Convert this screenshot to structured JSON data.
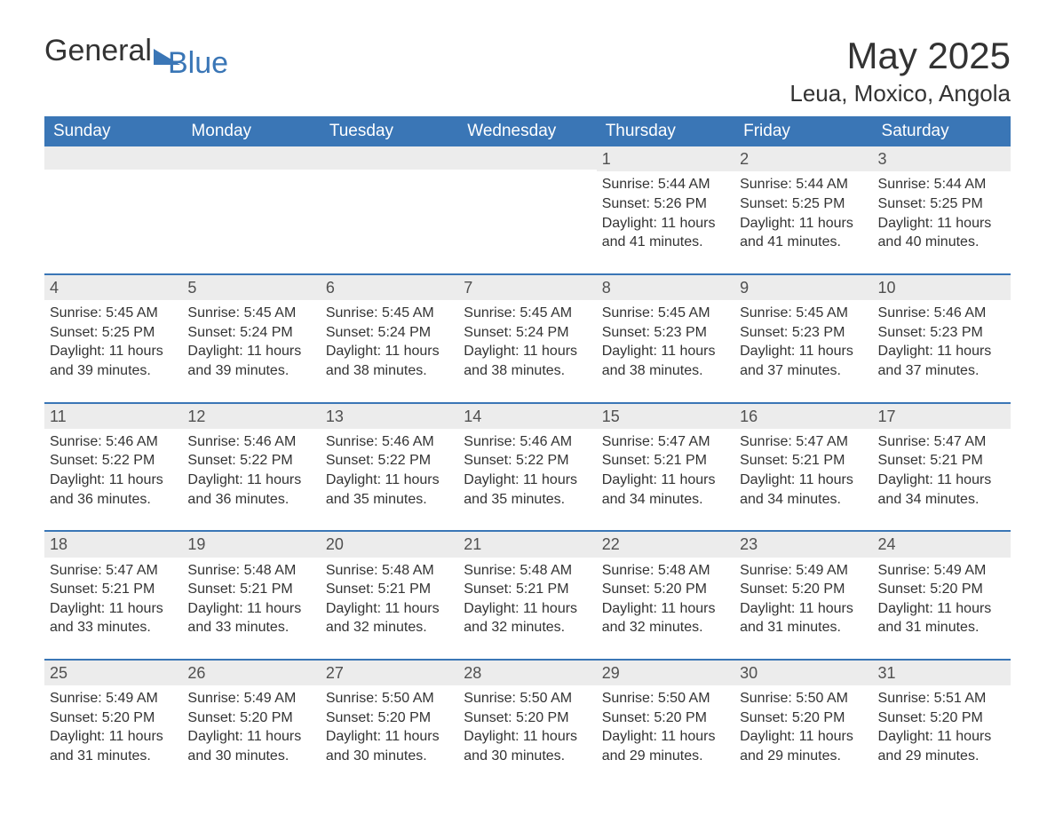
{
  "brand": {
    "word1": "General",
    "word2": "Blue",
    "accent_color": "#3a76b6"
  },
  "title": "May 2025",
  "location": "Leua, Moxico, Angola",
  "columns": [
    "Sunday",
    "Monday",
    "Tuesday",
    "Wednesday",
    "Thursday",
    "Friday",
    "Saturday"
  ],
  "labels": {
    "sunrise": "Sunrise:",
    "sunset": "Sunset:",
    "daylight": "Daylight:"
  },
  "colors": {
    "header_bg": "#3a76b6",
    "header_text": "#ffffff",
    "daynum_bg": "#ececec",
    "row_divider": "#3a76b6",
    "body_text": "#333333",
    "page_bg": "#ffffff"
  },
  "weeks": [
    [
      null,
      null,
      null,
      null,
      {
        "n": "1",
        "sr": "5:44 AM",
        "ss": "5:26 PM",
        "dl": "11 hours and 41 minutes."
      },
      {
        "n": "2",
        "sr": "5:44 AM",
        "ss": "5:25 PM",
        "dl": "11 hours and 41 minutes."
      },
      {
        "n": "3",
        "sr": "5:44 AM",
        "ss": "5:25 PM",
        "dl": "11 hours and 40 minutes."
      }
    ],
    [
      {
        "n": "4",
        "sr": "5:45 AM",
        "ss": "5:25 PM",
        "dl": "11 hours and 39 minutes."
      },
      {
        "n": "5",
        "sr": "5:45 AM",
        "ss": "5:24 PM",
        "dl": "11 hours and 39 minutes."
      },
      {
        "n": "6",
        "sr": "5:45 AM",
        "ss": "5:24 PM",
        "dl": "11 hours and 38 minutes."
      },
      {
        "n": "7",
        "sr": "5:45 AM",
        "ss": "5:24 PM",
        "dl": "11 hours and 38 minutes."
      },
      {
        "n": "8",
        "sr": "5:45 AM",
        "ss": "5:23 PM",
        "dl": "11 hours and 38 minutes."
      },
      {
        "n": "9",
        "sr": "5:45 AM",
        "ss": "5:23 PM",
        "dl": "11 hours and 37 minutes."
      },
      {
        "n": "10",
        "sr": "5:46 AM",
        "ss": "5:23 PM",
        "dl": "11 hours and 37 minutes."
      }
    ],
    [
      {
        "n": "11",
        "sr": "5:46 AM",
        "ss": "5:22 PM",
        "dl": "11 hours and 36 minutes."
      },
      {
        "n": "12",
        "sr": "5:46 AM",
        "ss": "5:22 PM",
        "dl": "11 hours and 36 minutes."
      },
      {
        "n": "13",
        "sr": "5:46 AM",
        "ss": "5:22 PM",
        "dl": "11 hours and 35 minutes."
      },
      {
        "n": "14",
        "sr": "5:46 AM",
        "ss": "5:22 PM",
        "dl": "11 hours and 35 minutes."
      },
      {
        "n": "15",
        "sr": "5:47 AM",
        "ss": "5:21 PM",
        "dl": "11 hours and 34 minutes."
      },
      {
        "n": "16",
        "sr": "5:47 AM",
        "ss": "5:21 PM",
        "dl": "11 hours and 34 minutes."
      },
      {
        "n": "17",
        "sr": "5:47 AM",
        "ss": "5:21 PM",
        "dl": "11 hours and 34 minutes."
      }
    ],
    [
      {
        "n": "18",
        "sr": "5:47 AM",
        "ss": "5:21 PM",
        "dl": "11 hours and 33 minutes."
      },
      {
        "n": "19",
        "sr": "5:48 AM",
        "ss": "5:21 PM",
        "dl": "11 hours and 33 minutes."
      },
      {
        "n": "20",
        "sr": "5:48 AM",
        "ss": "5:21 PM",
        "dl": "11 hours and 32 minutes."
      },
      {
        "n": "21",
        "sr": "5:48 AM",
        "ss": "5:21 PM",
        "dl": "11 hours and 32 minutes."
      },
      {
        "n": "22",
        "sr": "5:48 AM",
        "ss": "5:20 PM",
        "dl": "11 hours and 32 minutes."
      },
      {
        "n": "23",
        "sr": "5:49 AM",
        "ss": "5:20 PM",
        "dl": "11 hours and 31 minutes."
      },
      {
        "n": "24",
        "sr": "5:49 AM",
        "ss": "5:20 PM",
        "dl": "11 hours and 31 minutes."
      }
    ],
    [
      {
        "n": "25",
        "sr": "5:49 AM",
        "ss": "5:20 PM",
        "dl": "11 hours and 31 minutes."
      },
      {
        "n": "26",
        "sr": "5:49 AM",
        "ss": "5:20 PM",
        "dl": "11 hours and 30 minutes."
      },
      {
        "n": "27",
        "sr": "5:50 AM",
        "ss": "5:20 PM",
        "dl": "11 hours and 30 minutes."
      },
      {
        "n": "28",
        "sr": "5:50 AM",
        "ss": "5:20 PM",
        "dl": "11 hours and 30 minutes."
      },
      {
        "n": "29",
        "sr": "5:50 AM",
        "ss": "5:20 PM",
        "dl": "11 hours and 29 minutes."
      },
      {
        "n": "30",
        "sr": "5:50 AM",
        "ss": "5:20 PM",
        "dl": "11 hours and 29 minutes."
      },
      {
        "n": "31",
        "sr": "5:51 AM",
        "ss": "5:20 PM",
        "dl": "11 hours and 29 minutes."
      }
    ]
  ]
}
